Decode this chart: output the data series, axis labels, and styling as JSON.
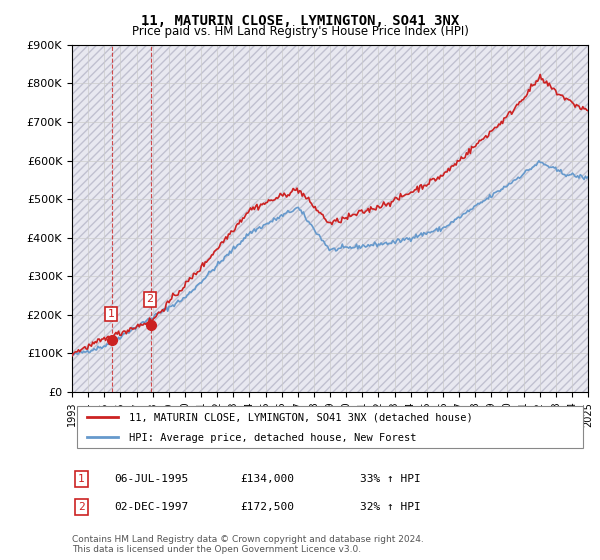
{
  "title": "11, MATURIN CLOSE, LYMINGTON, SO41 3NX",
  "subtitle": "Price paid vs. HM Land Registry's House Price Index (HPI)",
  "price_paid": [
    {
      "date": 1995.51,
      "price": 134000,
      "label": "1"
    },
    {
      "date": 1997.92,
      "price": 172500,
      "label": "2"
    }
  ],
  "legend_entries": [
    "11, MATURIN CLOSE, LYMINGTON, SO41 3NX (detached house)",
    "HPI: Average price, detached house, New Forest"
  ],
  "table_rows": [
    [
      "1",
      "06-JUL-1995",
      "£134,000",
      "33% ↑ HPI"
    ],
    [
      "2",
      "02-DEC-1997",
      "£172,500",
      "32% ↑ HPI"
    ]
  ],
  "footer": "Contains HM Land Registry data © Crown copyright and database right 2024.\nThis data is licensed under the Open Government Licence v3.0.",
  "xmin": 1993,
  "xmax": 2025,
  "ymin": 0,
  "ymax": 900000,
  "hpi_color": "#6699cc",
  "price_color": "#cc2222",
  "bg_hatch_color": "#e8e8f0",
  "grid_color": "#cccccc"
}
